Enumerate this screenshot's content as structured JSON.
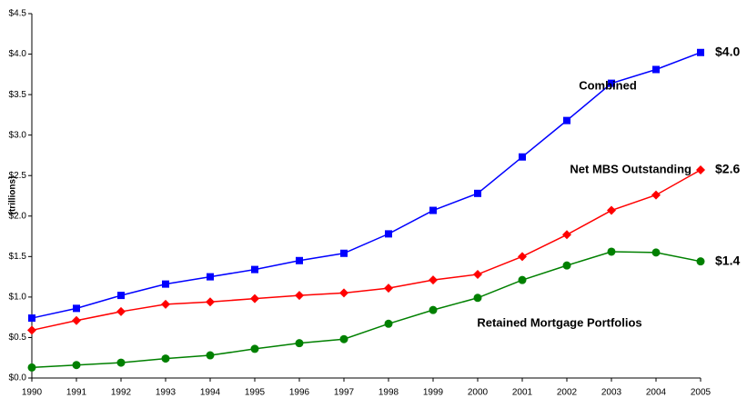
{
  "chart_data": {
    "type": "line",
    "y_label": "(trillions)",
    "categories": [
      "1990",
      "1991",
      "1992",
      "1993",
      "1994",
      "1995",
      "1996",
      "1997",
      "1998",
      "1999",
      "2000",
      "2001",
      "2002",
      "2003",
      "2004",
      "2005"
    ],
    "series": [
      {
        "name": "Combined",
        "color": "#0000ff",
        "marker": "square",
        "values": [
          0.74,
          0.86,
          1.02,
          1.16,
          1.25,
          1.34,
          1.45,
          1.54,
          1.78,
          2.07,
          2.28,
          2.73,
          3.18,
          3.64,
          3.81,
          4.02
        ],
        "value_labels": [
          null,
          null,
          null,
          null,
          null,
          null,
          null,
          null,
          null,
          null,
          null,
          null,
          null,
          null,
          null,
          "$4.0"
        ]
      },
      {
        "name": "Net MBS Outstanding",
        "color": "#ff0000",
        "marker": "diamond",
        "values": [
          0.59,
          0.71,
          0.82,
          0.91,
          0.94,
          0.98,
          1.02,
          1.05,
          1.11,
          1.21,
          1.28,
          1.5,
          1.77,
          2.07,
          2.26,
          2.57
        ],
        "value_labels": [
          null,
          null,
          null,
          null,
          null,
          null,
          null,
          null,
          null,
          null,
          null,
          null,
          null,
          null,
          null,
          "$2.6"
        ]
      },
      {
        "name": "Retained Mortgage Portfolios",
        "color": "#008000",
        "marker": "circle",
        "values": [
          0.13,
          0.16,
          0.19,
          0.24,
          0.28,
          0.36,
          0.43,
          0.48,
          0.67,
          0.84,
          0.99,
          1.21,
          1.39,
          1.56,
          1.55,
          1.44
        ],
        "value_labels": [
          null,
          null,
          null,
          null,
          null,
          null,
          null,
          null,
          null,
          null,
          null,
          null,
          null,
          null,
          null,
          "$1.4"
        ]
      }
    ],
    "ylim": [
      0,
      4.5
    ],
    "yticks": [
      {
        "value": 0,
        "label": "$0.0"
      },
      {
        "value": 0.5,
        "label": "$0.5"
      },
      {
        "value": 1,
        "label": "$1.0"
      },
      {
        "value": 1.5,
        "label": "$1.5"
      },
      {
        "value": 2,
        "label": "$2.0"
      },
      {
        "value": 2.5,
        "label": "$2.5"
      },
      {
        "value": 3,
        "label": "$3.0"
      },
      {
        "value": 3.5,
        "label": "$3.5"
      },
      {
        "value": 4,
        "label": "$4.0"
      },
      {
        "value": 4.5,
        "label": "$4.5"
      }
    ],
    "grid": false
  }
}
